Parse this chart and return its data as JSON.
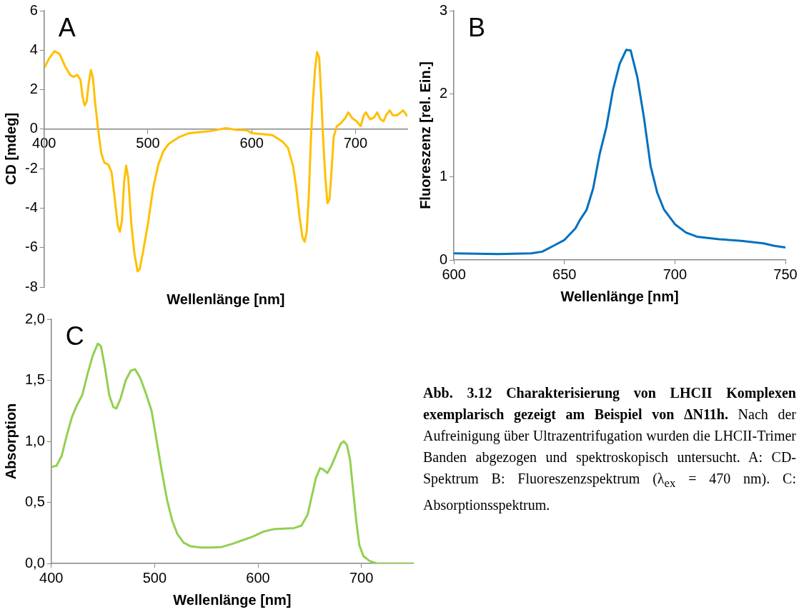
{
  "chart_data": [
    {
      "type": "line",
      "annotations": [
        "A"
      ],
      "xlabel": "Wellenlänge [nm]",
      "ylabel": "CD [mdeg]",
      "xlim": [
        400,
        750
      ],
      "xticks": [
        400,
        500,
        600,
        700
      ],
      "ylim": [
        -8,
        6
      ],
      "yticks": [
        -8,
        -6,
        -4,
        -2,
        0,
        2,
        4,
        6
      ],
      "marker": "none",
      "x": [
        400,
        405,
        410,
        415,
        420,
        425,
        428,
        432,
        435,
        437,
        439,
        441,
        443,
        445,
        447,
        449,
        452,
        455,
        458,
        462,
        465,
        468,
        471,
        473,
        475,
        477,
        479,
        481,
        484,
        487,
        490,
        492,
        495,
        500,
        505,
        510,
        515,
        520,
        530,
        540,
        550,
        560,
        575,
        585,
        595,
        600,
        610,
        620,
        630,
        635,
        640,
        643,
        646,
        649,
        651,
        653,
        655,
        657,
        659,
        661,
        663,
        665,
        667,
        669,
        671,
        673,
        675,
        677,
        679,
        682,
        686,
        690,
        693,
        697,
        701,
        705,
        708,
        710,
        714,
        718,
        721,
        724,
        727,
        730,
        733,
        736,
        740,
        746,
        750
      ],
      "series": [
        {
          "color": "#ffc000",
          "values": [
            3.1,
            3.6,
            3.95,
            3.8,
            3.2,
            2.75,
            2.65,
            2.75,
            2.5,
            1.65,
            1.2,
            1.4,
            2.35,
            3.0,
            2.6,
            1.4,
            0,
            -1.2,
            -1.7,
            -1.8,
            -2.2,
            -3.5,
            -4.9,
            -5.2,
            -4.6,
            -2.7,
            -1.85,
            -2.45,
            -4.8,
            -6.3,
            -7.2,
            -7.1,
            -6.3,
            -4.8,
            -3.0,
            -1.8,
            -1.1,
            -0.75,
            -0.4,
            -0.2,
            -0.15,
            -0.1,
            0.05,
            -0.03,
            -0.05,
            -0.2,
            -0.25,
            -0.3,
            -0.65,
            -0.95,
            -1.9,
            -3.0,
            -4.4,
            -5.5,
            -5.7,
            -5.2,
            -3.4,
            -0.55,
            1.4,
            3.0,
            3.9,
            3.65,
            1.65,
            -0.65,
            -2.45,
            -3.75,
            -3.55,
            -2.05,
            -0.4,
            0.15,
            0.3,
            0.55,
            0.85,
            0.55,
            0.4,
            0.15,
            0.7,
            0.85,
            0.5,
            0.6,
            0.85,
            0.5,
            0.4,
            0.75,
            0.95,
            0.7,
            0.7,
            0.95,
            0.65
          ]
        }
      ]
    },
    {
      "type": "line",
      "annotations": [
        "B"
      ],
      "xlabel": "Wellenlänge [nm]",
      "ylabel": "Fluoreszenz [rel. Ein.]",
      "xlim": [
        600,
        750
      ],
      "xticks": [
        600,
        650,
        700,
        750
      ],
      "ylim": [
        0,
        3
      ],
      "yticks": [
        0,
        1,
        2,
        3
      ],
      "marker": "none",
      "x": [
        600,
        620,
        635,
        640,
        645,
        650,
        655,
        657,
        660,
        663,
        666,
        669,
        672,
        675,
        678,
        680,
        683,
        686,
        689,
        692,
        695,
        700,
        705,
        710,
        720,
        730,
        740,
        745,
        750
      ],
      "series": [
        {
          "color": "#0070c0",
          "values": [
            0.08,
            0.07,
            0.08,
            0.1,
            0.17,
            0.24,
            0.38,
            0.48,
            0.6,
            0.86,
            1.28,
            1.6,
            2.05,
            2.36,
            2.53,
            2.52,
            2.2,
            1.71,
            1.13,
            0.81,
            0.61,
            0.43,
            0.33,
            0.28,
            0.25,
            0.23,
            0.2,
            0.17,
            0.15
          ]
        }
      ]
    },
    {
      "type": "line",
      "annotations": [
        "C"
      ],
      "xlabel": "Wellenlänge [nm]",
      "ylabel": "Absorption",
      "xlim": [
        400,
        750
      ],
      "xticks": [
        400,
        500,
        600,
        700
      ],
      "ylim": [
        0,
        2
      ],
      "yticks": [
        {
          "value": 0,
          "label": "0,0"
        },
        {
          "value": 0.5,
          "label": "0,5"
        },
        {
          "value": 1,
          "label": "1,0"
        },
        {
          "value": 1.5,
          "label": "1,5"
        },
        {
          "value": 2,
          "label": "2,0"
        }
      ],
      "marker": "none",
      "x": [
        400,
        405,
        410,
        415,
        420,
        425,
        430,
        435,
        440,
        445,
        448,
        452,
        456,
        460,
        463,
        467,
        472,
        477,
        481,
        486,
        492,
        497,
        502,
        507,
        512,
        517,
        522,
        528,
        535,
        545,
        555,
        565,
        575,
        585,
        595,
        605,
        615,
        625,
        635,
        642,
        648,
        652,
        656,
        660,
        663,
        667,
        671,
        676,
        680,
        683,
        686,
        689,
        692,
        695,
        698,
        702,
        708,
        715,
        730,
        750
      ],
      "series": [
        {
          "color": "#92d050",
          "values": [
            0.79,
            0.8,
            0.88,
            1.05,
            1.2,
            1.3,
            1.38,
            1.55,
            1.7,
            1.8,
            1.78,
            1.6,
            1.38,
            1.28,
            1.27,
            1.35,
            1.5,
            1.58,
            1.59,
            1.52,
            1.38,
            1.25,
            1.0,
            0.75,
            0.52,
            0.35,
            0.24,
            0.17,
            0.14,
            0.13,
            0.13,
            0.135,
            0.16,
            0.19,
            0.22,
            0.26,
            0.28,
            0.285,
            0.29,
            0.31,
            0.4,
            0.55,
            0.7,
            0.78,
            0.77,
            0.74,
            0.8,
            0.9,
            0.98,
            1.0,
            0.97,
            0.85,
            0.6,
            0.35,
            0.15,
            0.06,
            0.02,
            0,
            0,
            0
          ]
        }
      ]
    },
    {
      "type": "other",
      "title": "Abb. 3.12 Charakterisierung von LHCII Komplexen exemplarisch gezeigt am Beispiel von ΔN11h.",
      "annotations": [
        "Nach der Aufreinigung über Ultrazentrifugation wurden die LHCII-Trimer Banden abgezogen und spektroskopisch untersucht. A: CD-Spektrum B: Fluoreszenzspektrum (λ$_{ex}$ = 470 nm). C: Absorptionsspektrum."
      ]
    }
  ]
}
